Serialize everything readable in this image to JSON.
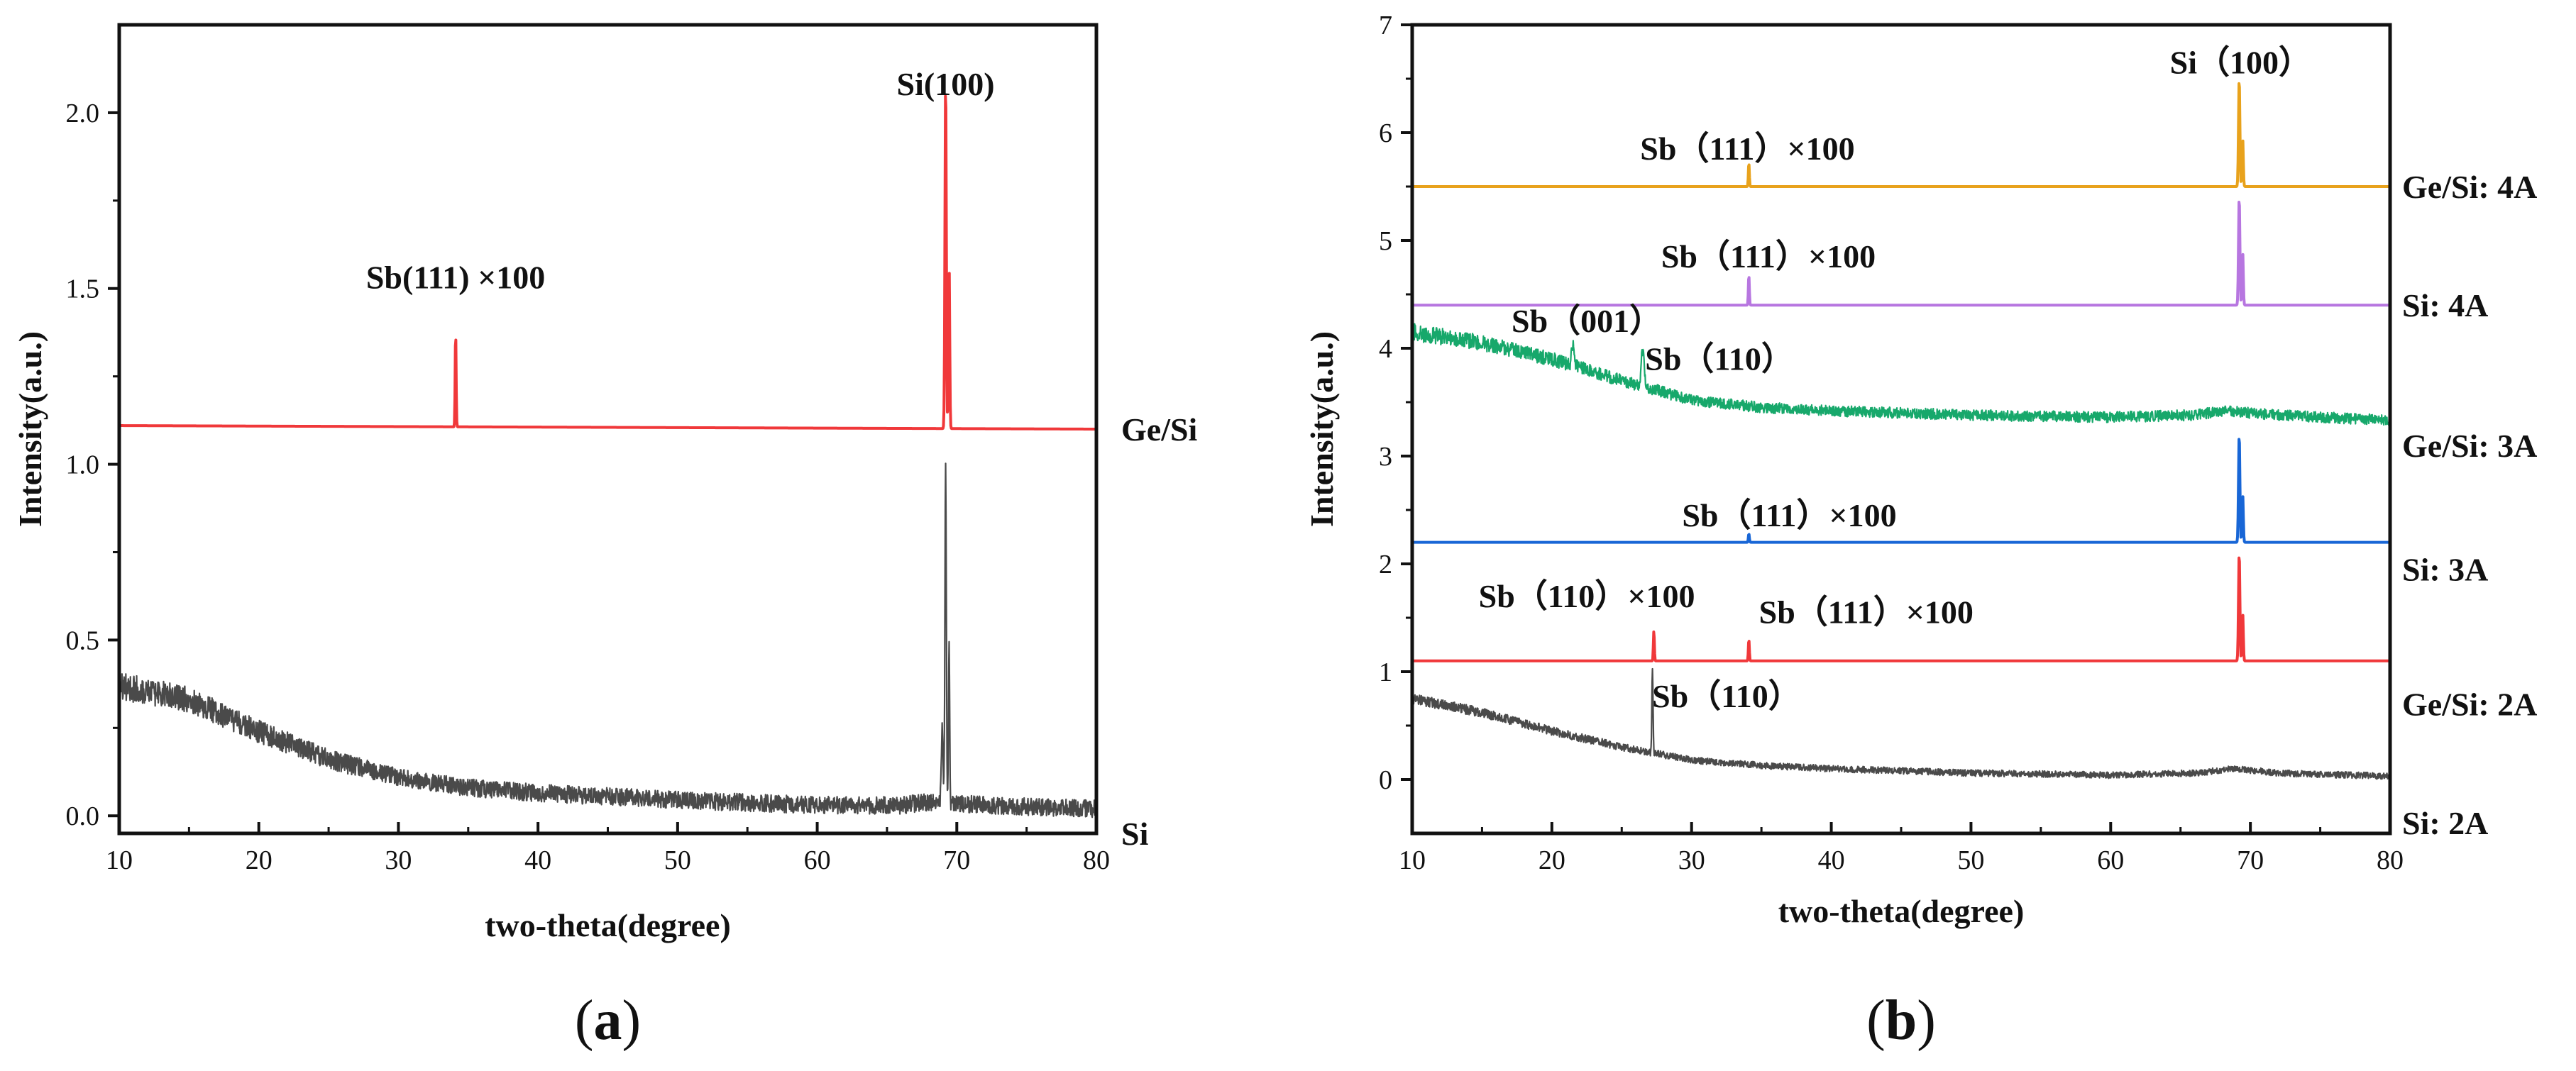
{
  "chart_data": [
    {
      "id": "a",
      "type": "line",
      "panel_label": "a",
      "xlabel": "two-theta(degree)",
      "ylabel": "Intensity(a.u.)",
      "xlim": [
        10,
        80
      ],
      "ylim": [
        -0.05,
        2.25
      ],
      "xticks": [
        10,
        20,
        30,
        40,
        50,
        60,
        70,
        80
      ],
      "yticks": [
        0.0,
        0.5,
        1.0,
        1.5,
        2.0
      ],
      "ytick_labels": [
        "0.0",
        "0.5",
        "1.0",
        "1.5",
        "2.0"
      ],
      "series": [
        {
          "name": "Ge/Si",
          "color": "#f0383a",
          "baseline_start": 1.11,
          "baseline_end": 1.1,
          "noise": 0.0,
          "peaks": [
            {
              "x": 34.1,
              "height": 0.27,
              "width": 0.05
            },
            {
              "x": 69.2,
              "height": 0.99,
              "width": 0.07
            },
            {
              "x": 69.45,
              "height": 0.47,
              "width": 0.06
            }
          ]
        },
        {
          "name": "Si",
          "color": "#4a4a4a",
          "baseline_points": [
            [
              10,
              0.37
            ],
            [
              15,
              0.33
            ],
            [
              20,
              0.24
            ],
            [
              25,
              0.16
            ],
            [
              30,
              0.11
            ],
            [
              35,
              0.08
            ],
            [
              40,
              0.065
            ],
            [
              50,
              0.045
            ],
            [
              60,
              0.03
            ],
            [
              66,
              0.03
            ],
            [
              68,
              0.04
            ],
            [
              72,
              0.03
            ],
            [
              80,
              0.02
            ]
          ],
          "noise": 0.05,
          "peaks": [
            {
              "x": 68.95,
              "height": 0.22,
              "width": 0.08
            },
            {
              "x": 69.2,
              "height": 0.96,
              "width": 0.07
            },
            {
              "x": 69.45,
              "height": 0.45,
              "width": 0.06
            }
          ]
        }
      ],
      "annotations": [
        {
          "text": "Si(100)",
          "x": 69.2,
          "y": 2.05
        },
        {
          "text": "Sb(111) ×100",
          "x": 34.1,
          "y": 1.5
        }
      ],
      "legend_labels": [
        {
          "text": "Ge/Si",
          "y": 1.1
        },
        {
          "text": "Si",
          "y": -0.05
        }
      ]
    },
    {
      "id": "b",
      "type": "line",
      "panel_label": "b",
      "xlabel": "two-theta(degree)",
      "ylabel": "Intensity(a.u.)",
      "xlim": [
        10,
        80
      ],
      "ylim": [
        -0.5,
        7
      ],
      "xticks": [
        10,
        20,
        30,
        40,
        50,
        60,
        70,
        80
      ],
      "yticks": [
        0,
        1,
        2,
        3,
        4,
        5,
        6,
        7
      ],
      "ytick_labels": [
        "0",
        "1",
        "2",
        "3",
        "4",
        "5",
        "6",
        "7"
      ],
      "series": [
        {
          "name": "Ge/Si: 4A",
          "color": "#e8a21c",
          "baseline_start": 5.5,
          "baseline_end": 5.5,
          "noise": 0.0,
          "peaks": [
            {
              "x": 34.1,
              "height": 0.22,
              "width": 0.05
            },
            {
              "x": 69.2,
              "height": 1.0,
              "width": 0.07
            },
            {
              "x": 69.45,
              "height": 0.45,
              "width": 0.06
            }
          ]
        },
        {
          "name": "Si: 4A",
          "color": "#b776e0",
          "baseline_start": 4.4,
          "baseline_end": 4.4,
          "noise": 0.0,
          "peaks": [
            {
              "x": 34.1,
              "height": 0.28,
              "width": 0.05
            },
            {
              "x": 69.2,
              "height": 1.0,
              "width": 0.07
            },
            {
              "x": 69.45,
              "height": 0.5,
              "width": 0.06
            }
          ]
        },
        {
          "name": "Ge/Si: 3A",
          "color": "#17a86b",
          "baseline_points": [
            [
              10,
              4.15
            ],
            [
              15,
              4.05
            ],
            [
              20,
              3.9
            ],
            [
              25,
              3.7
            ],
            [
              30,
              3.52
            ],
            [
              35,
              3.45
            ],
            [
              40,
              3.42
            ],
            [
              50,
              3.38
            ],
            [
              60,
              3.36
            ],
            [
              66,
              3.38
            ],
            [
              68,
              3.42
            ],
            [
              72,
              3.38
            ],
            [
              80,
              3.33
            ]
          ],
          "noise": 0.1,
          "peaks": [
            {
              "x": 21.5,
              "height": 0.2,
              "width": 0.12
            },
            {
              "x": 26.5,
              "height": 0.35,
              "width": 0.15
            }
          ]
        },
        {
          "name": "Si: 3A",
          "color": "#1866d6",
          "baseline_start": 2.2,
          "baseline_end": 2.2,
          "noise": 0.0,
          "peaks": [
            {
              "x": 34.1,
              "height": 0.08,
              "width": 0.05
            },
            {
              "x": 69.2,
              "height": 1.0,
              "width": 0.07
            },
            {
              "x": 69.45,
              "height": 0.45,
              "width": 0.06
            }
          ]
        },
        {
          "name": "Ge/Si: 2A",
          "color": "#f0383a",
          "baseline_start": 1.1,
          "baseline_end": 1.1,
          "noise": 0.0,
          "peaks": [
            {
              "x": 27.3,
              "height": 0.28,
              "width": 0.05
            },
            {
              "x": 34.1,
              "height": 0.2,
              "width": 0.05
            },
            {
              "x": 69.2,
              "height": 1.0,
              "width": 0.07
            },
            {
              "x": 69.45,
              "height": 0.45,
              "width": 0.06
            }
          ]
        },
        {
          "name": "Si: 2A",
          "color": "#4a4a4a",
          "baseline_points": [
            [
              10,
              0.75
            ],
            [
              15,
              0.62
            ],
            [
              20,
              0.45
            ],
            [
              25,
              0.3
            ],
            [
              30,
              0.18
            ],
            [
              35,
              0.13
            ],
            [
              40,
              0.1
            ],
            [
              50,
              0.06
            ],
            [
              60,
              0.04
            ],
            [
              66,
              0.06
            ],
            [
              69,
              0.1
            ],
            [
              72,
              0.06
            ],
            [
              80,
              0.03
            ]
          ],
          "noise": 0.06,
          "peaks": [
            {
              "x": 27.2,
              "height": 0.75,
              "width": 0.06
            }
          ]
        }
      ],
      "annotations": [
        {
          "text": "Si（100）",
          "x": 69.3,
          "y": 6.55
        },
        {
          "text": "Sb（111）×100",
          "x": 34.0,
          "y": 5.75
        },
        {
          "text": "Sb（111）×100",
          "x": 35.5,
          "y": 4.75
        },
        {
          "text": "Sb（001）",
          "x": 22.5,
          "y": 4.15
        },
        {
          "text": "Sb（110）",
          "x": 32.0,
          "y": 3.8
        },
        {
          "text": "Sb（111）×100",
          "x": 37.0,
          "y": 2.35
        },
        {
          "text": "Sb（110）×100",
          "x": 22.5,
          "y": 1.6
        },
        {
          "text": "Sb（111）×100",
          "x": 42.5,
          "y": 1.45
        },
        {
          "text": "Sb（110）",
          "x": 32.5,
          "y": 0.67
        }
      ],
      "legend_labels": [
        {
          "text": "Ge/Si: 4A",
          "y": 5.5
        },
        {
          "text": "Si: 4A",
          "y": 4.4
        },
        {
          "text": "Ge/Si: 3A",
          "y": 3.1
        },
        {
          "text": "Si: 3A",
          "y": 1.95
        },
        {
          "text": "Ge/Si: 2A",
          "y": 0.7
        },
        {
          "text": "Si: 2A",
          "y": -0.4
        }
      ]
    }
  ]
}
